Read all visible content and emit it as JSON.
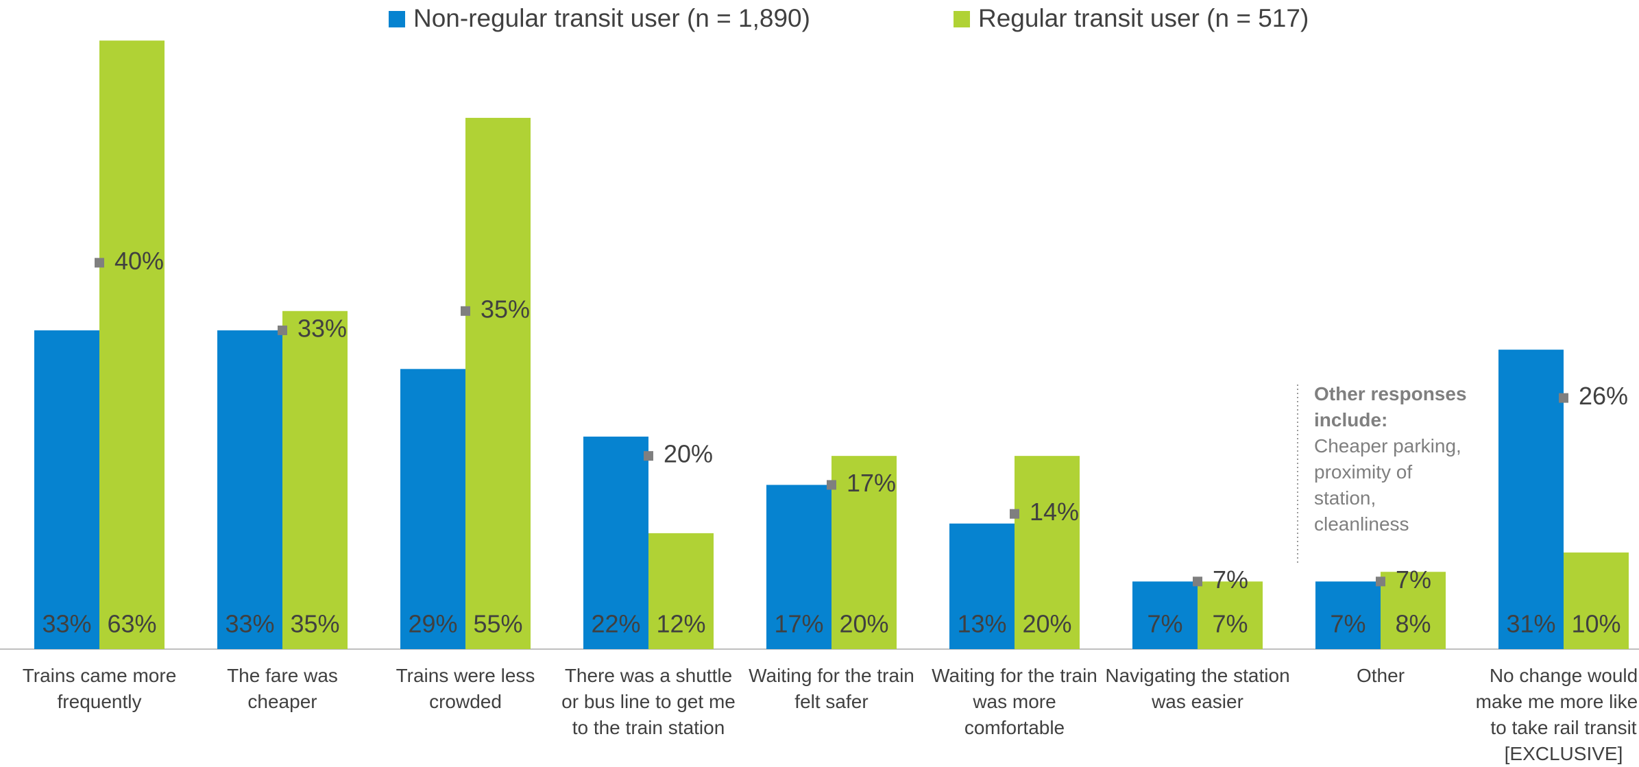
{
  "chart_data": {
    "type": "bar",
    "categories": [
      "Trains came more frequently",
      "The fare was cheaper",
      "Trains were less crowded",
      "There was a shuttle or bus line to get me to the train station",
      "Waiting for the train felt safer",
      "Waiting for the train was more comfortable",
      "Navigating the station was easier",
      "Other",
      "No change would make me more likely to take rail transit [EXCLUSIVE]"
    ],
    "series": [
      {
        "name": "Non-regular transit user (n = 1,890)",
        "color": "#0683d0",
        "values": [
          33,
          33,
          29,
          22,
          17,
          13,
          7,
          7,
          31
        ],
        "value_labels": [
          "33%",
          "33%",
          "29%",
          "22%",
          "17%",
          "13%",
          "7%",
          "7%",
          "31%"
        ]
      },
      {
        "name": "Regular transit user (n = 517)",
        "color": "#b0d235",
        "values": [
          63,
          35,
          55,
          12,
          20,
          20,
          7,
          8,
          10
        ],
        "value_labels": [
          "63%",
          "35%",
          "55%",
          "12%",
          "20%",
          "20%",
          "7%",
          "8%",
          "10%"
        ]
      },
      {
        "color": "#7f7f7f",
        "marker": "square",
        "values": [
          40,
          33,
          35,
          20,
          17,
          14,
          7,
          7,
          26
        ],
        "value_labels": [
          "40%",
          "33%",
          "35%",
          "20%",
          "17%",
          "14%",
          "7%",
          "7%",
          "26%"
        ]
      }
    ],
    "ylim": [
      0,
      65
    ],
    "annotation": {
      "title": "Other responses include:",
      "text": "Cheaper parking, proximity of station, cleanliness"
    }
  }
}
